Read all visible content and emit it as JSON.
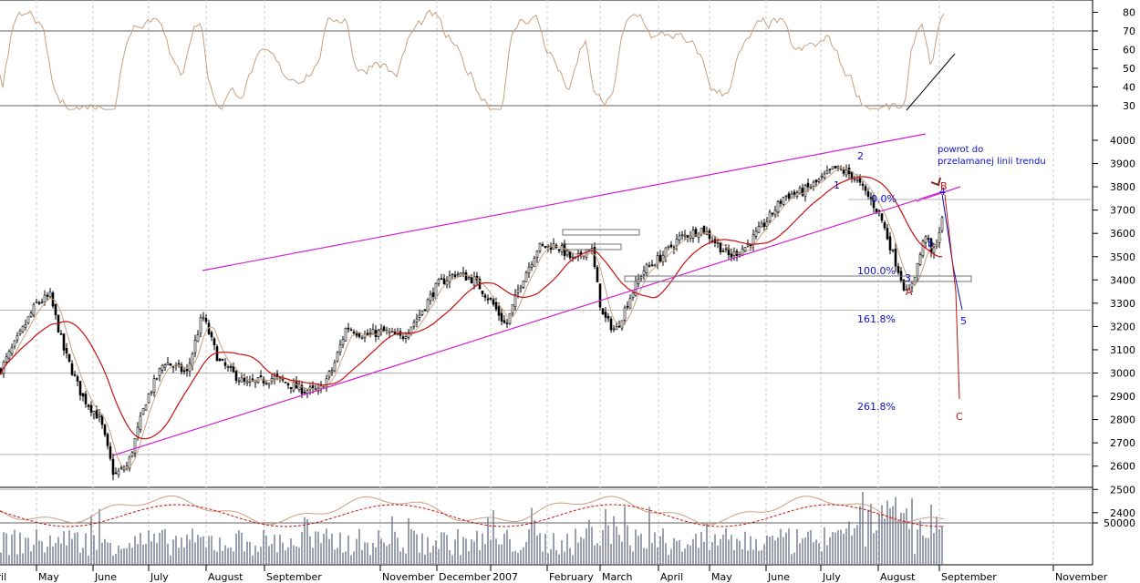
{
  "chart_data": {
    "type": "candlestick",
    "months": [
      {
        "label": "April",
        "x": -20
      },
      {
        "label": "May",
        "x": 40
      },
      {
        "label": "June",
        "x": 102
      },
      {
        "label": "July",
        "x": 163
      },
      {
        "label": "August",
        "x": 226
      },
      {
        "label": "September",
        "x": 290
      },
      {
        "label": "November",
        "x": 417
      },
      {
        "label": "December",
        "x": 479
      },
      {
        "label": "2007",
        "x": 538
      },
      {
        "label": "February",
        "x": 600
      },
      {
        "label": "March",
        "x": 658
      },
      {
        "label": "April",
        "x": 722
      },
      {
        "label": "May",
        "x": 778
      },
      {
        "label": "June",
        "x": 840
      },
      {
        "label": "July",
        "x": 900
      },
      {
        "label": "August",
        "x": 963
      },
      {
        "label": "September",
        "x": 1030
      },
      {
        "label": "November",
        "x": 1155
      }
    ],
    "price_axis": {
      "ticks": [
        4000,
        3900,
        3800,
        3700,
        3600,
        3500,
        3400,
        3300,
        3200,
        3100,
        3000,
        2900,
        2800,
        2700,
        2600,
        2500,
        2400
      ],
      "ylim": [
        2320,
        4080
      ]
    },
    "rsi_axis": {
      "ticks": [
        80,
        70,
        60,
        50,
        40,
        30
      ],
      "levels": [
        70,
        30
      ],
      "ylim": [
        25,
        85
      ]
    },
    "volume_axis": {
      "ticks": [
        50000
      ]
    },
    "horizontal_levels": [
      3270,
      3000,
      2650,
      2500
    ],
    "fibonacci_labels": [
      {
        "text": "100.0%",
        "price": 3250
      },
      {
        "text": "161.8%",
        "price": 3010
      },
      {
        "text": "261.8%",
        "price": 2580
      },
      {
        "text": "0.0%",
        "price": 3650
      }
    ],
    "wave_labels": [
      {
        "text": "1",
        "price": 3740,
        "color": "#1010c0"
      },
      {
        "text": "2",
        "price": 3920,
        "color": "#1010c0"
      },
      {
        "text": "3",
        "price": 3230,
        "color": "#1010c0"
      },
      {
        "text": "4",
        "price": 3710,
        "color": "#1010c0"
      },
      {
        "text": "5",
        "price": 3020,
        "color": "#1010c0"
      },
      {
        "text": "b",
        "price": 3460,
        "color": "#1010c0"
      },
      {
        "text": "A",
        "price": 3170,
        "color": "#c01010"
      },
      {
        "text": "B",
        "price": 3730,
        "color": "#c01010"
      },
      {
        "text": "C",
        "price": 2600,
        "color": "#c01010"
      }
    ],
    "annotation": [
      "powrot do",
      "przelamanej linii trendu"
    ],
    "series": [
      {
        "name": "price",
        "type": "candlestick",
        "color": "#000000"
      },
      {
        "name": "moving average short",
        "type": "line",
        "color": "#c8a080"
      },
      {
        "name": "moving average long",
        "type": "line",
        "color": "#c81010"
      },
      {
        "name": "channel",
        "type": "line",
        "color": "#d020d0"
      },
      {
        "name": "RSI",
        "type": "line",
        "color": "#c8a080"
      },
      {
        "name": "volume",
        "type": "bar",
        "color": "#707890"
      }
    ],
    "grid": true,
    "colors": {
      "price": "#000000",
      "ma_short": "#c8a080",
      "ma_long": "#c81010",
      "channel": "#d020d0",
      "volume": "#707890",
      "grid": "#c8c8c8",
      "annotation": "#1010c0"
    }
  }
}
